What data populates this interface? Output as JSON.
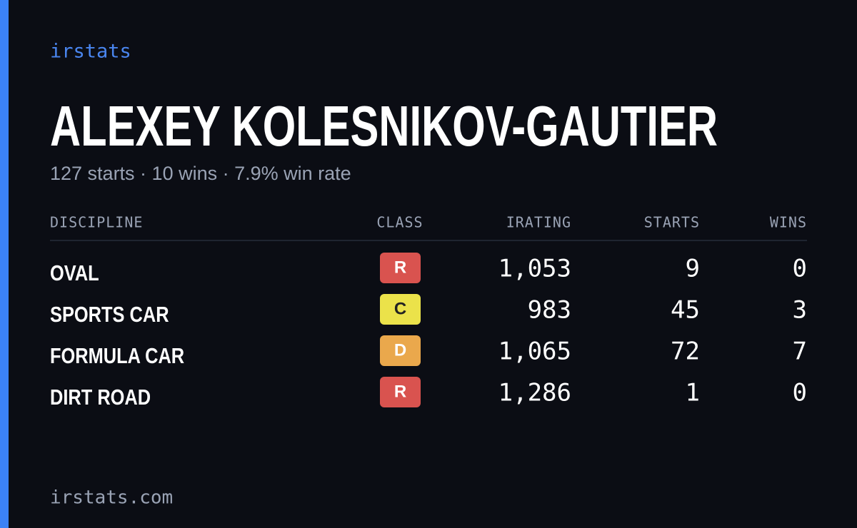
{
  "brand": "irstats",
  "profile": {
    "name": "ALEXEY KOLESNIKOV-GAUTIER",
    "summary": "127 starts · 10 wins · 7.9% win rate"
  },
  "table": {
    "header": [
      "DISCIPLINE",
      "CLASS",
      "IRATING",
      "STARTS",
      "WINS"
    ],
    "rows": [
      {
        "discipline": "OVAL",
        "class": "R",
        "class_color": "#d9534f",
        "irating": "1,053",
        "starts": "9",
        "wins": "0"
      },
      {
        "discipline": "SPORTS CAR",
        "class": "C",
        "class_color": "#ebe24a",
        "irating": "983",
        "starts": "45",
        "wins": "3"
      },
      {
        "discipline": "FORMULA CAR",
        "class": "D",
        "class_color": "#eaa84c",
        "irating": "1,065",
        "starts": "72",
        "wins": "7"
      },
      {
        "discipline": "DIRT ROAD",
        "class": "R",
        "class_color": "#d9534f",
        "irating": "1,286",
        "starts": "1",
        "wins": "0"
      }
    ]
  },
  "footer": "irstats.com"
}
